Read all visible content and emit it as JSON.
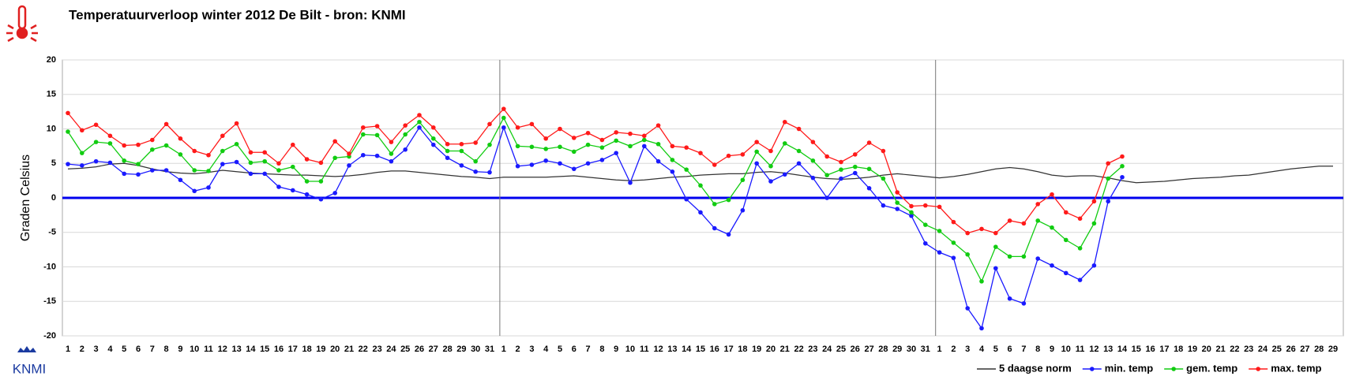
{
  "logo_text": "KNMI",
  "chart_data": {
    "type": "line",
    "title": "Temperatuurverloop winter 2012 De Bilt - bron: KNMI",
    "y_label": "Graden Celsius",
    "categories": [
      "1",
      "2",
      "3",
      "4",
      "5",
      "6",
      "7",
      "8",
      "9",
      "10",
      "11",
      "12",
      "13",
      "14",
      "15",
      "16",
      "17",
      "18",
      "19",
      "20",
      "21",
      "22",
      "23",
      "24",
      "25",
      "26",
      "27",
      "28",
      "29",
      "30",
      "31",
      "1",
      "2",
      "3",
      "4",
      "5",
      "6",
      "7",
      "8",
      "9",
      "10",
      "11",
      "12",
      "13",
      "14",
      "15",
      "16",
      "17",
      "18",
      "19",
      "20",
      "21",
      "22",
      "23",
      "24",
      "25",
      "26",
      "27",
      "28",
      "29",
      "30",
      "31",
      "1",
      "2",
      "3",
      "4",
      "5",
      "6",
      "7",
      "8",
      "9",
      "10",
      "11",
      "12",
      "13",
      "14",
      "15",
      "16",
      "17",
      "18",
      "19",
      "20",
      "21",
      "22",
      "23",
      "24",
      "25",
      "26",
      "27",
      "28",
      "29"
    ],
    "ylim": [
      -20,
      20
    ],
    "yticks": [
      -20,
      -15,
      -10,
      -5,
      0,
      5,
      10,
      15,
      20
    ],
    "grid": true,
    "legend": "bottom-right",
    "series": [
      {
        "name": "5 daagse norm",
        "color": "#333333",
        "marker": false,
        "values": [
          4.2,
          4.3,
          4.5,
          4.9,
          5.0,
          4.7,
          4.2,
          3.8,
          3.6,
          3.5,
          3.7,
          4.0,
          3.8,
          3.6,
          3.5,
          3.4,
          3.3,
          3.3,
          3.2,
          3.1,
          3.2,
          3.4,
          3.7,
          3.9,
          3.9,
          3.7,
          3.5,
          3.3,
          3.1,
          3.0,
          2.8,
          3.0,
          3.0,
          3.0,
          3.0,
          3.1,
          3.2,
          3.0,
          2.8,
          2.6,
          2.5,
          2.6,
          2.8,
          3.0,
          3.1,
          3.3,
          3.4,
          3.5,
          3.5,
          3.7,
          3.8,
          3.6,
          3.3,
          3.0,
          2.8,
          2.7,
          2.8,
          3.0,
          3.3,
          3.5,
          3.3,
          3.1,
          2.9,
          3.1,
          3.4,
          3.8,
          4.2,
          4.4,
          4.2,
          3.8,
          3.3,
          3.1,
          3.2,
          3.2,
          2.9,
          2.5,
          2.2,
          2.3,
          2.4,
          2.6,
          2.8,
          2.9,
          3.0,
          3.2,
          3.3,
          3.6,
          3.9,
          4.2,
          4.4,
          4.6,
          4.6
        ]
      },
      {
        "name": "min. temp",
        "color": "#1a1aff",
        "marker": true,
        "values": [
          4.9,
          4.7,
          5.3,
          5.1,
          3.5,
          3.4,
          4.0,
          4.0,
          2.6,
          1.0,
          1.5,
          4.9,
          5.2,
          3.5,
          3.5,
          1.6,
          1.1,
          0.5,
          -0.2,
          0.7,
          4.7,
          6.2,
          6.1,
          5.3,
          7.0,
          10.2,
          7.7,
          5.8,
          4.7,
          3.8,
          3.7,
          10.2,
          4.6,
          4.8,
          5.4,
          5.0,
          4.2,
          5.0,
          5.5,
          6.5,
          2.2,
          7.5,
          5.3,
          3.8,
          -0.2,
          -2.1,
          -4.4,
          -5.3,
          -1.8,
          5.0,
          2.4,
          3.4,
          5.0,
          2.9,
          0.0,
          2.8,
          3.6,
          1.4,
          -1.1,
          -1.6,
          -2.6,
          -6.6,
          -7.9,
          -8.7,
          -16.0,
          -18.9,
          -10.2,
          -14.6,
          -15.3,
          -8.8,
          -9.8,
          -10.9,
          -11.9,
          -9.8,
          -0.5,
          3.0,
          null,
          null,
          null,
          null,
          null,
          null,
          null,
          null,
          null,
          null,
          null,
          null,
          null,
          null,
          null
        ]
      },
      {
        "name": "gem. temp",
        "color": "#11cc11",
        "marker": true,
        "values": [
          9.6,
          6.5,
          8.1,
          7.9,
          5.4,
          4.9,
          7.0,
          7.6,
          6.3,
          4.0,
          3.9,
          6.8,
          7.8,
          5.1,
          5.3,
          4.0,
          4.5,
          2.4,
          2.4,
          5.8,
          6.0,
          9.2,
          9.1,
          6.4,
          9.2,
          11.0,
          8.6,
          6.8,
          6.8,
          5.3,
          7.7,
          11.6,
          7.5,
          7.4,
          7.1,
          7.4,
          6.7,
          7.7,
          7.3,
          8.3,
          7.5,
          8.4,
          7.8,
          5.5,
          4.1,
          1.8,
          -0.9,
          -0.3,
          2.6,
          6.7,
          4.6,
          7.9,
          6.8,
          5.4,
          3.3,
          4.1,
          4.5,
          4.2,
          2.8,
          -0.7,
          -2.1,
          -3.9,
          -4.8,
          -6.5,
          -8.2,
          -12.1,
          -7.1,
          -8.5,
          -8.5,
          -3.3,
          -4.3,
          -6.1,
          -7.3,
          -3.7,
          2.8,
          4.6,
          null,
          null,
          null,
          null,
          null,
          null,
          null,
          null,
          null,
          null,
          null,
          null,
          null,
          null,
          null
        ]
      },
      {
        "name": "max. temp",
        "color": "#ff1a1a",
        "marker": true,
        "values": [
          12.3,
          9.8,
          10.6,
          9.0,
          7.6,
          7.7,
          8.4,
          10.7,
          8.6,
          6.8,
          6.2,
          9.0,
          10.8,
          6.6,
          6.6,
          5.0,
          7.7,
          5.6,
          5.1,
          8.2,
          6.4,
          10.2,
          10.4,
          8.1,
          10.5,
          12.0,
          10.2,
          7.8,
          7.8,
          8.0,
          10.7,
          12.9,
          10.2,
          10.7,
          8.6,
          10.0,
          8.7,
          9.4,
          8.4,
          9.5,
          9.3,
          9.0,
          10.5,
          7.5,
          7.3,
          6.5,
          4.8,
          6.1,
          6.3,
          8.1,
          6.8,
          11.0,
          10.0,
          8.1,
          6.0,
          5.2,
          6.3,
          8.0,
          6.8,
          0.8,
          -1.2,
          -1.1,
          -1.3,
          -3.5,
          -5.1,
          -4.5,
          -5.1,
          -3.3,
          -3.7,
          -0.9,
          0.5,
          -2.1,
          -3.0,
          -0.5,
          5.0,
          6.0,
          null,
          null,
          null,
          null,
          null,
          null,
          null,
          null,
          null,
          null,
          null,
          null,
          null,
          null,
          null
        ]
      }
    ]
  }
}
